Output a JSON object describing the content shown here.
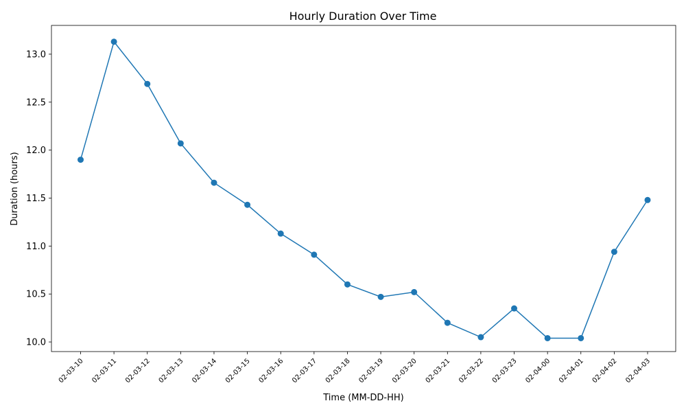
{
  "chart_data": {
    "type": "line",
    "title": "Hourly Duration Over Time",
    "xlabel": "Time (MM-DD-HH)",
    "ylabel": "Duration (hours)",
    "categories": [
      "02-03-10",
      "02-03-11",
      "02-03-12",
      "02-03-13",
      "02-03-14",
      "02-03-15",
      "02-03-16",
      "02-03-17",
      "02-03-18",
      "02-03-19",
      "02-03-20",
      "02-03-21",
      "02-03-22",
      "02-03-23",
      "02-04-00",
      "02-04-01",
      "02-04-02",
      "02-04-03"
    ],
    "series": [
      {
        "values": [
          11.9,
          13.13,
          12.69,
          12.07,
          11.66,
          11.43,
          11.13,
          10.91,
          10.6,
          10.47,
          10.52,
          10.2,
          10.05,
          10.35,
          10.04,
          10.04,
          10.94,
          11.48
        ],
        "color": "#1f77b4",
        "marker": "circle"
      }
    ],
    "ylim": [
      9.9,
      13.3
    ],
    "yticks": [
      "10.0",
      "10.5",
      "11.0",
      "11.5",
      "12.0",
      "12.5",
      "13.0"
    ],
    "grid": false,
    "legend": false
  }
}
